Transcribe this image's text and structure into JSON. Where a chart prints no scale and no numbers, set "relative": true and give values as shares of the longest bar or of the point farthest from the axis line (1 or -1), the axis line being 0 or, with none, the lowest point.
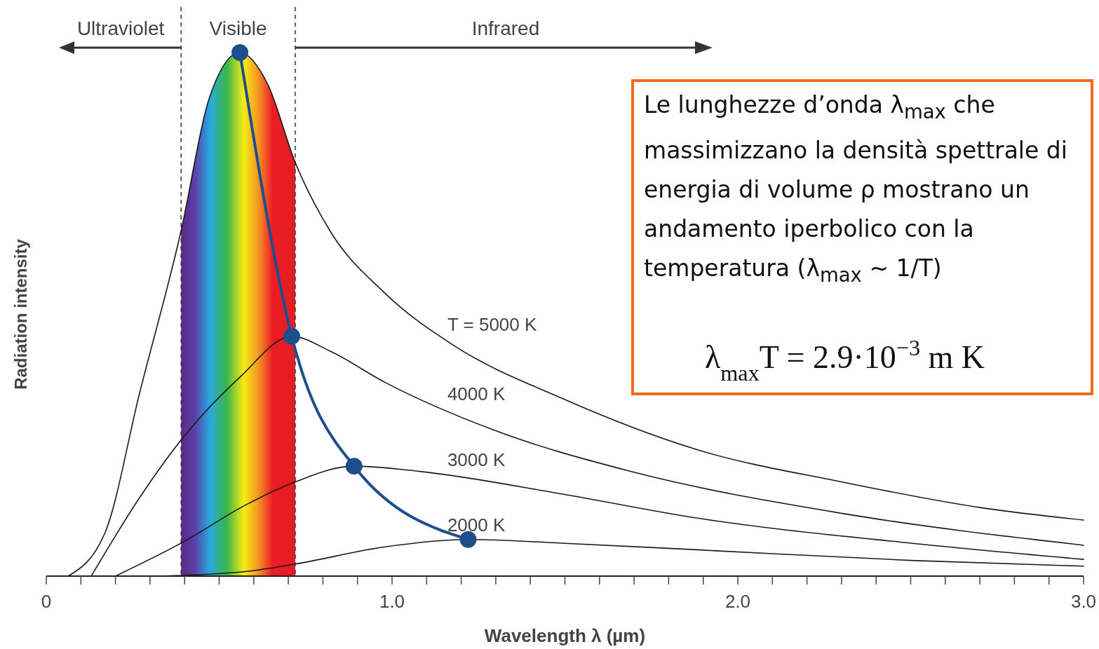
{
  "chart_data": {
    "type": "line",
    "relative": true,
    "xlabel": "Wavelength λ (µm)",
    "ylabel": "Radiation intensity",
    "xlim": [
      0,
      3.0
    ],
    "xticks": [
      0,
      {
        "value": 0.1,
        "label": null
      },
      {
        "value": 0.2,
        "label": null
      },
      {
        "value": 0.3,
        "label": null
      },
      {
        "value": 0.4,
        "label": null
      },
      {
        "value": 0.5,
        "label": null
      },
      {
        "value": 0.6,
        "label": null
      },
      {
        "value": 0.7,
        "label": null
      },
      {
        "value": 0.8,
        "label": null
      },
      {
        "value": 0.9,
        "label": null
      },
      {
        "value": 1,
        "label": "1.0"
      },
      {
        "value": 1.1,
        "label": null
      },
      {
        "value": 1.2,
        "label": null
      },
      {
        "value": 1.3,
        "label": null
      },
      {
        "value": 1.4,
        "label": null
      },
      {
        "value": 1.5,
        "label": null
      },
      {
        "value": 1.6,
        "label": null
      },
      {
        "value": 1.7,
        "label": null
      },
      {
        "value": 1.8,
        "label": null
      },
      {
        "value": 1.9,
        "label": null
      },
      {
        "value": 2,
        "label": "2.0"
      },
      {
        "value": 2.1,
        "label": null
      },
      {
        "value": 2.2,
        "label": null
      },
      {
        "value": 2.3,
        "label": null
      },
      {
        "value": 2.4,
        "label": null
      },
      {
        "value": 2.5,
        "label": null
      },
      {
        "value": 2.6,
        "label": null
      },
      {
        "value": 2.7,
        "label": null
      },
      {
        "value": 2.8,
        "label": null
      },
      {
        "value": 2.9,
        "label": null
      },
      {
        "value": 3,
        "label": "3.0"
      }
    ],
    "series": [
      {
        "name": "T = 5000 K",
        "color": "#1a1a1a",
        "marker": "none",
        "x": [
          0.063,
          0.17,
          0.27,
          0.39,
          0.47,
          0.56,
          0.64,
          0.72,
          0.82,
          0.98,
          1.18,
          1.49,
          1.89,
          2.3,
          2.71,
          3.0
        ],
        "values": [
          0,
          0.083,
          0.35,
          0.66,
          0.91,
          1.0,
          0.94,
          0.79,
          0.66,
          0.54,
          0.44,
          0.34,
          0.24,
          0.18,
          0.13,
          0.107
        ]
      },
      {
        "name": "4000 K",
        "color": "#1a1a1a",
        "marker": "none",
        "x": [
          0.13,
          0.27,
          0.39,
          0.56,
          0.71,
          0.82,
          0.98,
          1.29,
          1.69,
          2.3,
          3.0
        ],
        "values": [
          0,
          0.15,
          0.26,
          0.38,
          0.458,
          0.43,
          0.37,
          0.28,
          0.2,
          0.12,
          0.059
        ]
      },
      {
        "name": "3000 K",
        "color": "#1a1a1a",
        "marker": "none",
        "x": [
          0.2,
          0.39,
          0.58,
          0.72,
          0.89,
          1.08,
          1.49,
          1.89,
          2.5,
          3.0
        ],
        "values": [
          0,
          0.063,
          0.137,
          0.18,
          0.21,
          0.2,
          0.157,
          0.11,
          0.063,
          0.032
        ]
      },
      {
        "name": "2000 K",
        "color": "#1a1a1a",
        "marker": "none",
        "x": [
          0.33,
          0.58,
          0.72,
          0.98,
          1.22,
          1.49,
          1.89,
          2.5,
          3.0
        ],
        "values": [
          0,
          0.009,
          0.023,
          0.056,
          0.07,
          0.063,
          0.05,
          0.03,
          0.019
        ]
      },
      {
        "color": "#1f4e8c",
        "marker": "circle",
        "x": [
          0.56,
          0.71,
          0.89,
          1.22
        ],
        "values": [
          1.0,
          0.458,
          0.21,
          0.07
        ]
      }
    ],
    "ref_lines": [
      {
        "axis": "x",
        "value": 0.39,
        "line_style": "dashed",
        "color": "#333333"
      },
      {
        "axis": "x",
        "value": 0.72,
        "line_style": "dashed",
        "color": "#333333"
      }
    ],
    "bands": [
      {
        "axis": "x",
        "from": 0.39,
        "to": 0.72
      }
    ],
    "annotations": [
      "Ultraviolet",
      "Visible",
      "Infrared",
      "Le lunghezze d’onda λ$_{max}$ che massimizzano la densità spettrale di energia di volume ρ mostrano un andamento iperbolico con la temperatura (λ$_{max}$ ~ 1/T)",
      "λ$_{max}$T = 2.9·10$^{−3}$ m K"
    ]
  }
}
